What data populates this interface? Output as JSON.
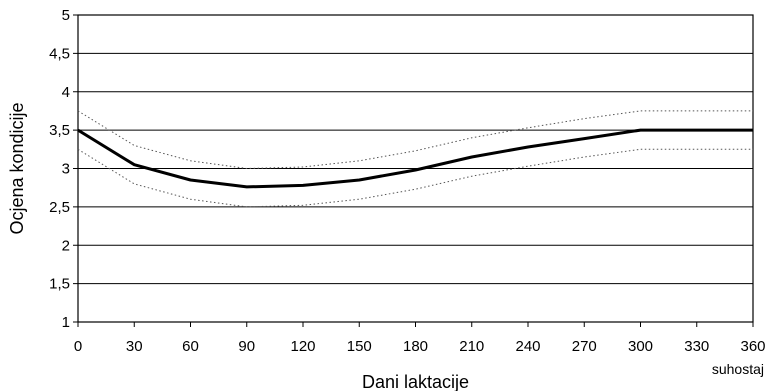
{
  "chart_data": {
    "type": "line",
    "xlabel": "Dani laktacije",
    "ylabel": "Ocjena kondicije",
    "xlim": [
      0,
      360
    ],
    "ylim": [
      1,
      5
    ],
    "x_ticks": [
      0,
      30,
      60,
      90,
      120,
      150,
      180,
      210,
      240,
      270,
      300,
      330,
      360
    ],
    "y_ticks": [
      1,
      1.5,
      2,
      2.5,
      3,
      3.5,
      4,
      4.5,
      5
    ],
    "y_tick_labels": [
      "1",
      "1,5",
      "2",
      "2,5",
      "3",
      "3,5",
      "4",
      "4,5",
      "5"
    ],
    "x_tick_labels": [
      "0",
      "30",
      "60",
      "90",
      "120",
      "150",
      "180",
      "210",
      "240",
      "270",
      "300",
      "330",
      "360"
    ],
    "annotation": "suhostaj",
    "grid": "horizontal",
    "series": [
      {
        "style": "solid-thick",
        "color": "#000000",
        "x": [
          0,
          30,
          60,
          90,
          120,
          150,
          180,
          210,
          240,
          270,
          300,
          330,
          360
        ],
        "y": [
          3.5,
          3.05,
          2.85,
          2.76,
          2.78,
          2.85,
          2.98,
          3.15,
          3.28,
          3.39,
          3.5,
          3.5,
          3.5
        ]
      },
      {
        "style": "dotted",
        "color": "#555555",
        "x": [
          0,
          30,
          60,
          90,
          120,
          150,
          180,
          210,
          240,
          270,
          300,
          330,
          360
        ],
        "y": [
          3.75,
          3.3,
          3.1,
          3.0,
          3.02,
          3.1,
          3.23,
          3.4,
          3.53,
          3.65,
          3.75,
          3.75,
          3.75
        ]
      },
      {
        "style": "dotted",
        "color": "#555555",
        "x": [
          0,
          30,
          60,
          90,
          120,
          150,
          180,
          210,
          240,
          270,
          300,
          330,
          360
        ],
        "y": [
          3.25,
          2.8,
          2.6,
          2.5,
          2.52,
          2.6,
          2.73,
          2.9,
          3.03,
          3.15,
          3.25,
          3.25,
          3.25
        ]
      }
    ]
  }
}
